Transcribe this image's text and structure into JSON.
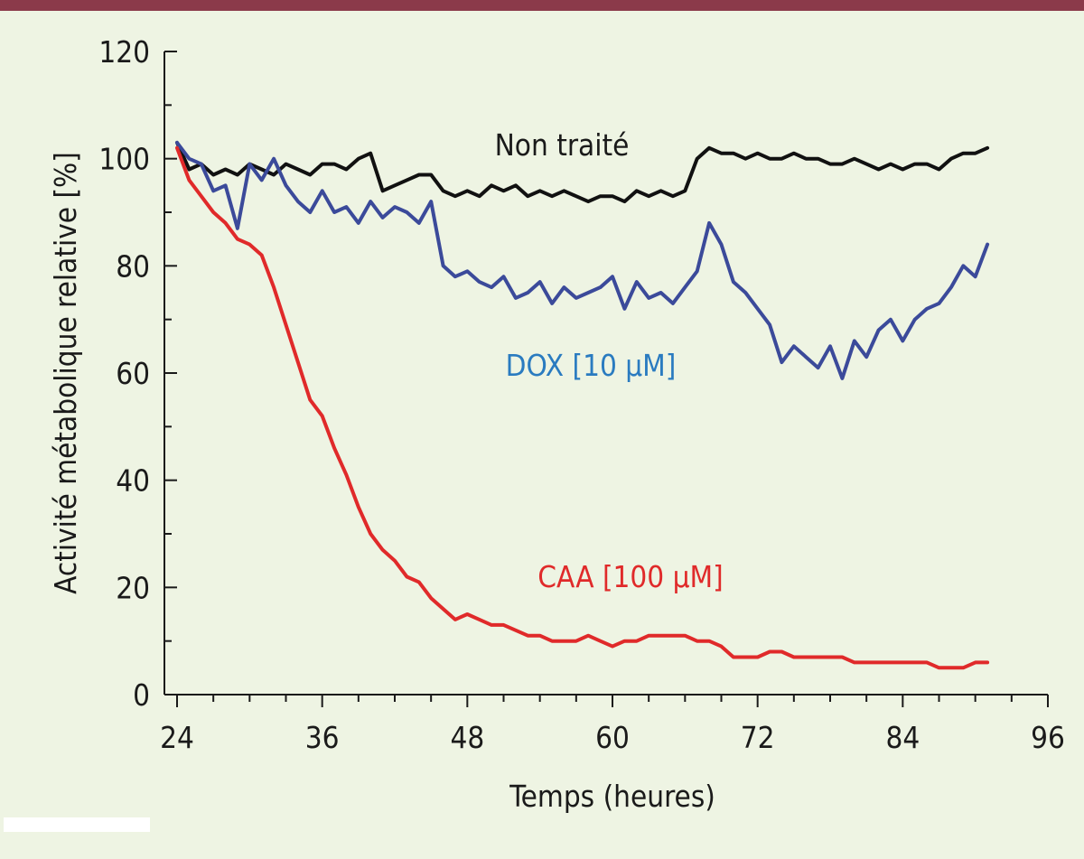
{
  "chart_data": {
    "type": "line",
    "title": "",
    "xlabel": "Temps (heures)",
    "ylabel": "Activité métabolique relative [%]",
    "xlim": [
      24,
      96
    ],
    "ylim": [
      0,
      120
    ],
    "xticks": [
      24,
      36,
      48,
      60,
      72,
      84,
      96
    ],
    "yticks": [
      0,
      20,
      40,
      60,
      80,
      100,
      120
    ],
    "grid": false,
    "colors": {
      "top_bar": "#8b3a4a",
      "background": "#eef4e3"
    },
    "series": [
      {
        "name": "Non traité",
        "color": "#111111",
        "label_color": "#1a1a1a",
        "x": [
          24,
          25,
          26,
          27,
          28,
          29,
          30,
          31,
          32,
          33,
          34,
          35,
          36,
          37,
          38,
          39,
          40,
          41,
          42,
          43,
          44,
          45,
          46,
          47,
          48,
          49,
          50,
          51,
          52,
          53,
          54,
          55,
          56,
          57,
          58,
          59,
          60,
          61,
          62,
          63,
          64,
          65,
          66,
          67,
          68,
          69,
          70,
          71,
          72,
          73,
          74,
          75,
          76,
          77,
          78,
          79,
          80,
          81,
          82,
          83,
          84,
          85,
          86,
          87,
          88,
          89,
          90,
          91
        ],
        "y": [
          103,
          98,
          99,
          97,
          98,
          97,
          99,
          98,
          97,
          99,
          98,
          97,
          99,
          99,
          98,
          100,
          101,
          94,
          95,
          96,
          97,
          97,
          94,
          93,
          94,
          93,
          95,
          94,
          95,
          93,
          94,
          93,
          94,
          93,
          92,
          93,
          93,
          92,
          94,
          93,
          94,
          93,
          94,
          100,
          102,
          101,
          101,
          100,
          101,
          100,
          100,
          101,
          100,
          100,
          99,
          99,
          100,
          99,
          98,
          99,
          98,
          99,
          99,
          98,
          100,
          101,
          101,
          102
        ]
      },
      {
        "name": "DOX [10 µM]",
        "color": "#3b4a9a",
        "label_color": "#2a7bc0",
        "x": [
          24,
          25,
          26,
          27,
          28,
          29,
          30,
          31,
          32,
          33,
          34,
          35,
          36,
          37,
          38,
          39,
          40,
          41,
          42,
          43,
          44,
          45,
          46,
          47,
          48,
          49,
          50,
          51,
          52,
          53,
          54,
          55,
          56,
          57,
          58,
          59,
          60,
          61,
          62,
          63,
          64,
          65,
          66,
          67,
          68,
          69,
          70,
          71,
          72,
          73,
          74,
          75,
          76,
          77,
          78,
          79,
          80,
          81,
          82,
          83,
          84,
          85,
          86,
          87,
          88,
          89,
          90,
          91
        ],
        "y": [
          103,
          100,
          99,
          94,
          95,
          87,
          99,
          96,
          100,
          95,
          92,
          90,
          94,
          90,
          91,
          88,
          92,
          89,
          91,
          90,
          88,
          92,
          80,
          78,
          79,
          77,
          76,
          78,
          74,
          75,
          77,
          73,
          76,
          74,
          75,
          76,
          78,
          72,
          77,
          74,
          75,
          73,
          76,
          79,
          88,
          84,
          77,
          75,
          72,
          69,
          62,
          65,
          63,
          61,
          65,
          59,
          66,
          63,
          68,
          70,
          66,
          70,
          72,
          73,
          76,
          80,
          78,
          84
        ]
      },
      {
        "name": "CAA [100 µM]",
        "color": "#e02a2a",
        "label_color": "#e02a2a",
        "x": [
          24,
          25,
          26,
          27,
          28,
          29,
          30,
          31,
          32,
          33,
          34,
          35,
          36,
          37,
          38,
          39,
          40,
          41,
          42,
          43,
          44,
          45,
          46,
          47,
          48,
          49,
          50,
          51,
          52,
          53,
          54,
          55,
          56,
          57,
          58,
          59,
          60,
          61,
          62,
          63,
          64,
          65,
          66,
          67,
          68,
          69,
          70,
          71,
          72,
          73,
          74,
          75,
          76,
          77,
          78,
          79,
          80,
          81,
          82,
          83,
          84,
          85,
          86,
          87,
          88,
          89,
          90,
          91
        ],
        "y": [
          102,
          96,
          93,
          90,
          88,
          85,
          84,
          82,
          76,
          69,
          62,
          55,
          52,
          46,
          41,
          35,
          30,
          27,
          25,
          22,
          21,
          18,
          16,
          14,
          15,
          14,
          13,
          13,
          12,
          11,
          11,
          10,
          10,
          10,
          11,
          10,
          9,
          10,
          10,
          11,
          11,
          11,
          11,
          10,
          10,
          9,
          7,
          7,
          7,
          8,
          8,
          7,
          7,
          7,
          7,
          7,
          6,
          6,
          6,
          6,
          6,
          6,
          6,
          5,
          5,
          5,
          6,
          6
        ]
      }
    ]
  }
}
